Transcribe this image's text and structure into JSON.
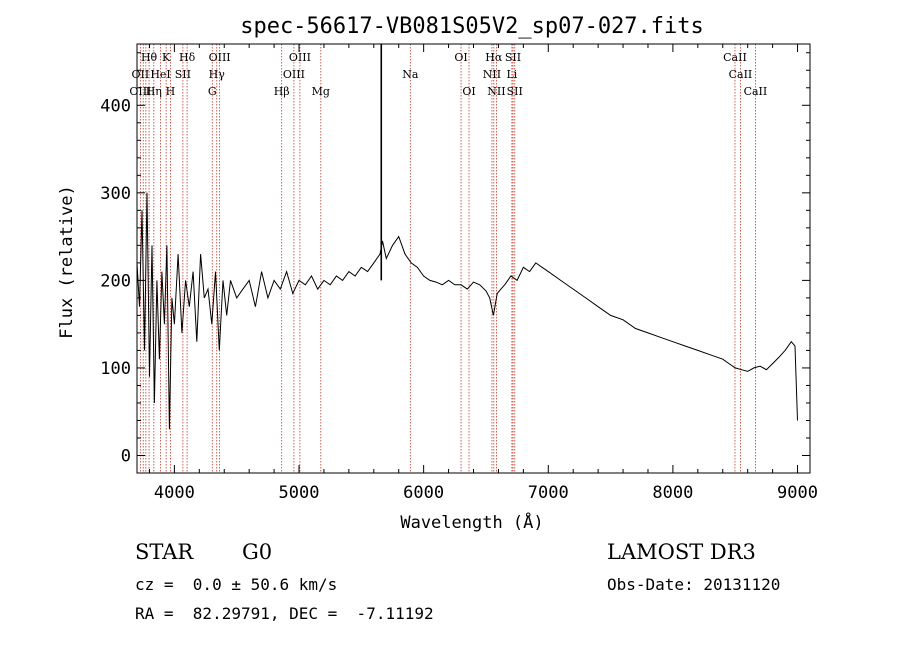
{
  "chart_data": {
    "type": "line",
    "title": "spec-56617-VB081S05V2_sp07-027.fits",
    "xlabel": "Wavelength (Å)",
    "ylabel": "Flux (relative)",
    "xlim": [
      3700,
      9100
    ],
    "ylim": [
      -20,
      470
    ],
    "xticks": [
      4000,
      5000,
      6000,
      7000,
      8000,
      9000
    ],
    "yticks": [
      0,
      100,
      200,
      300,
      400
    ],
    "series": [
      {
        "name": "spectrum",
        "x": [
          3700,
          3720,
          3740,
          3760,
          3780,
          3800,
          3820,
          3840,
          3860,
          3880,
          3900,
          3920,
          3940,
          3960,
          3980,
          4000,
          4030,
          4060,
          4090,
          4120,
          4150,
          4180,
          4210,
          4240,
          4270,
          4300,
          4330,
          4360,
          4390,
          4420,
          4450,
          4500,
          4550,
          4600,
          4650,
          4700,
          4750,
          4800,
          4850,
          4900,
          4950,
          5000,
          5050,
          5100,
          5150,
          5200,
          5250,
          5300,
          5350,
          5400,
          5450,
          5500,
          5550,
          5600,
          5650,
          5670,
          5700,
          5750,
          5800,
          5850,
          5900,
          5950,
          6000,
          6050,
          6100,
          6150,
          6200,
          6250,
          6300,
          6350,
          6400,
          6450,
          6500,
          6530,
          6560,
          6590,
          6620,
          6650,
          6700,
          6750,
          6800,
          6850,
          6900,
          6950,
          7000,
          7100,
          7200,
          7300,
          7400,
          7500,
          7600,
          7700,
          7800,
          7900,
          8000,
          8100,
          8200,
          8300,
          8400,
          8450,
          8500,
          8550,
          8600,
          8650,
          8700,
          8750,
          8800,
          8850,
          8900,
          8950,
          8980,
          9000
        ],
        "y": [
          220,
          170,
          280,
          120,
          300,
          90,
          240,
          60,
          200,
          110,
          210,
          150,
          240,
          30,
          180,
          150,
          230,
          140,
          200,
          170,
          210,
          130,
          230,
          180,
          190,
          150,
          210,
          120,
          200,
          160,
          200,
          180,
          190,
          200,
          170,
          210,
          180,
          200,
          190,
          210,
          185,
          200,
          195,
          205,
          190,
          200,
          195,
          205,
          200,
          210,
          205,
          215,
          210,
          220,
          230,
          245,
          225,
          240,
          250,
          230,
          220,
          215,
          205,
          200,
          198,
          195,
          200,
          195,
          195,
          190,
          198,
          195,
          188,
          180,
          160,
          185,
          190,
          195,
          205,
          200,
          215,
          210,
          220,
          215,
          210,
          200,
          190,
          180,
          170,
          160,
          155,
          145,
          140,
          135,
          130,
          125,
          120,
          115,
          110,
          105,
          100,
          98,
          96,
          100,
          102,
          98,
          105,
          112,
          120,
          130,
          125,
          40
        ]
      }
    ],
    "spike": {
      "x": 5660,
      "y": 470
    },
    "line_labels": [
      {
        "label": "Hθ",
        "x": 3797,
        "row": 1
      },
      {
        "label": "K",
        "x": 3934,
        "row": 1
      },
      {
        "label": "Hδ",
        "x": 4102,
        "row": 1
      },
      {
        "label": "OIII",
        "x": 4363,
        "row": 1
      },
      {
        "label": "OIII",
        "x": 5007,
        "row": 1
      },
      {
        "label": "OI",
        "x": 6300,
        "row": 1
      },
      {
        "label": "Hα",
        "x": 6563,
        "row": 1
      },
      {
        "label": "SII",
        "x": 6717,
        "row": 1
      },
      {
        "label": "CaII",
        "x": 8498,
        "row": 1
      },
      {
        "label": "OII",
        "x": 3727,
        "row": 2
      },
      {
        "label": "HeI",
        "x": 3889,
        "row": 2
      },
      {
        "label": "SII",
        "x": 4068,
        "row": 2
      },
      {
        "label": "Hγ",
        "x": 4340,
        "row": 2
      },
      {
        "label": "OIII",
        "x": 4959,
        "row": 2
      },
      {
        "label": "Na",
        "x": 5893,
        "row": 2
      },
      {
        "label": "NII",
        "x": 6548,
        "row": 2
      },
      {
        "label": "Li",
        "x": 6708,
        "row": 2
      },
      {
        "label": "CaII",
        "x": 8542,
        "row": 2
      },
      {
        "label": "OIII",
        "x": 3727,
        "row": 3
      },
      {
        "label": "Hη",
        "x": 3835,
        "row": 3
      },
      {
        "label": "H",
        "x": 3968,
        "row": 3
      },
      {
        "label": "G",
        "x": 4304,
        "row": 3
      },
      {
        "label": "Hβ",
        "x": 4861,
        "row": 3
      },
      {
        "label": "Mg",
        "x": 5175,
        "row": 3
      },
      {
        "label": "OI",
        "x": 6364,
        "row": 3
      },
      {
        "label": "NII",
        "x": 6584,
        "row": 3
      },
      {
        "label": "SII",
        "x": 6731,
        "row": 3
      },
      {
        "label": "CaII",
        "x": 8662,
        "row": 3
      }
    ],
    "line_positions": [
      3727,
      3750,
      3771,
      3797,
      3835,
      3889,
      3934,
      3968,
      4068,
      4102,
      4304,
      4340,
      4363,
      4861,
      4959,
      5007,
      5175,
      5893,
      6300,
      6364,
      6548,
      6563,
      6584,
      6708,
      6717,
      6731,
      8498,
      8542,
      8662
    ]
  },
  "footer": {
    "object_class": "STAR",
    "subclass": "G0",
    "survey": "LAMOST DR3",
    "redshift": "cz =  0.0 ± 50.6 km/s",
    "obs_date": "Obs-Date: 20131120",
    "coords": "RA =  82.29791, DEC =  -7.11192"
  }
}
